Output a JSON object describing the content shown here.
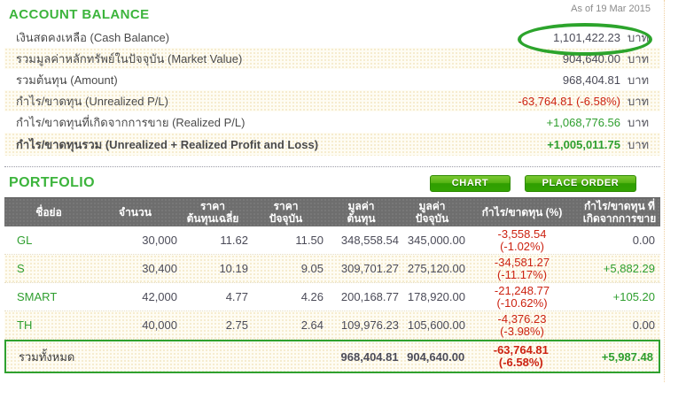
{
  "as_of": "As of 19 Mar 2015",
  "colors": {
    "accent_green": "#3CB43C",
    "negative_red": "#CC2211",
    "positive_green": "#2E9E2E",
    "row_cream": "#FBF6E1",
    "header_gray": "#6E6E6E"
  },
  "account_balance": {
    "title": "ACCOUNT BALANCE",
    "rows": [
      {
        "label": "เงินสดคงเหลือ (Cash Balance)",
        "value": "1,101,422.23",
        "unit": "บาท",
        "value_class": "neutral"
      },
      {
        "label": "รวมมูลค่าหลักทรัพย์ในปัจจุบัน (Market Value)",
        "value": "904,640.00",
        "unit": "บาท",
        "value_class": "neutral"
      },
      {
        "label": "รวมต้นทุน (Amount)",
        "value": "968,404.81",
        "unit": "บาท",
        "value_class": "neutral"
      },
      {
        "label": "กำไร/ขาดทุน (Unrealized P/L)",
        "value": "-63,764.81 (-6.58%)",
        "unit": "บาท",
        "value_class": "neg"
      },
      {
        "label": "กำไร/ขาดทุนที่เกิดจากการขาย (Realized P/L)",
        "value": "+1,068,776.56",
        "unit": "บาท",
        "value_class": "pos"
      },
      {
        "label": "กำไร/ขาดทุนรวม (Unrealized + Realized Profit and Loss)",
        "value": "+1,005,011.75",
        "unit": "บาท",
        "value_class": "pos"
      }
    ]
  },
  "portfolio": {
    "title": "PORTFOLIO",
    "buttons": {
      "chart": "CHART",
      "place_order": "PLACE ORDER"
    },
    "columns": [
      "ชื่อย่อ",
      "จำนวน",
      "ราคา\nต้นทุนเฉลี่ย",
      "ราคา\nปัจจุบัน",
      "มูลค่า\nต้นทุน",
      "มูลค่า\nปัจจุบัน",
      "กำไร/ขาดทุน (%)",
      "กำไร/ขาดทุน ที่\nเกิดจากการขาย"
    ],
    "rows": [
      {
        "symbol": "GL",
        "qty": "30,000",
        "avg_cost": "11.62",
        "last_price": "11.50",
        "cost_value": "348,558.54",
        "market_value": "345,000.00",
        "unrealized_pl": "-3,558.54\n(-1.02%)",
        "realized_pl": "0.00",
        "realized_class": "neutral"
      },
      {
        "symbol": "S",
        "qty": "30,400",
        "avg_cost": "10.19",
        "last_price": "9.05",
        "cost_value": "309,701.27",
        "market_value": "275,120.00",
        "unrealized_pl": "-34,581.27\n(-11.17%)",
        "realized_pl": "+5,882.29",
        "realized_class": "pos"
      },
      {
        "symbol": "SMART",
        "qty": "42,000",
        "avg_cost": "4.77",
        "last_price": "4.26",
        "cost_value": "200,168.77",
        "market_value": "178,920.00",
        "unrealized_pl": "-21,248.77\n(-10.62%)",
        "realized_pl": "+105.20",
        "realized_class": "pos"
      },
      {
        "symbol": "TH",
        "qty": "40,000",
        "avg_cost": "2.75",
        "last_price": "2.64",
        "cost_value": "109,976.23",
        "market_value": "105,600.00",
        "unrealized_pl": "-4,376.23\n(-3.98%)",
        "realized_pl": "0.00",
        "realized_class": "neutral"
      }
    ],
    "total": {
      "label": "รวมทั้งหมด",
      "cost_value": "968,404.81",
      "market_value": "904,640.00",
      "unrealized_pl": "-63,764.81\n(-6.58%)",
      "realized_pl": "+5,987.48"
    }
  }
}
